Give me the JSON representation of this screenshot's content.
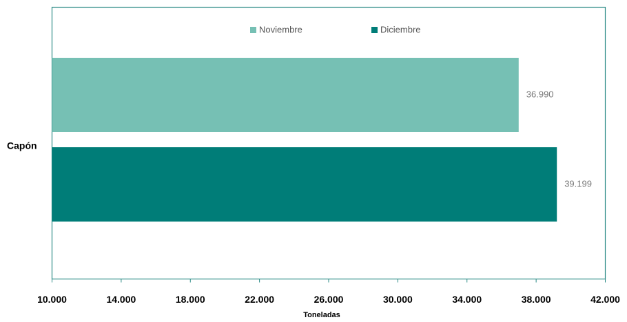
{
  "chart_data": {
    "type": "barh",
    "categories": [
      "Capón"
    ],
    "series": [
      {
        "name": "Noviembre",
        "color": "#76c0b4",
        "values": [
          36990
        ],
        "value_labels": [
          "36.990"
        ]
      },
      {
        "name": "Diciembre",
        "color": "#007d78",
        "values": [
          39199
        ],
        "value_labels": [
          "39.199"
        ]
      }
    ],
    "x_label": "Toneladas",
    "xlim": [
      10000,
      42000
    ],
    "xticks": [
      {
        "value": 10000,
        "label": "10.000"
      },
      {
        "value": 14000,
        "label": "14.000"
      },
      {
        "value": 18000,
        "label": "18.000"
      },
      {
        "value": 22000,
        "label": "22.000"
      },
      {
        "value": 26000,
        "label": "26.000"
      },
      {
        "value": 30000,
        "label": "30.000"
      },
      {
        "value": 34000,
        "label": "34.000"
      },
      {
        "value": 38000,
        "label": "38.000"
      },
      {
        "value": 42000,
        "label": "42.000"
      }
    ],
    "grid": false,
    "legend": "top"
  }
}
